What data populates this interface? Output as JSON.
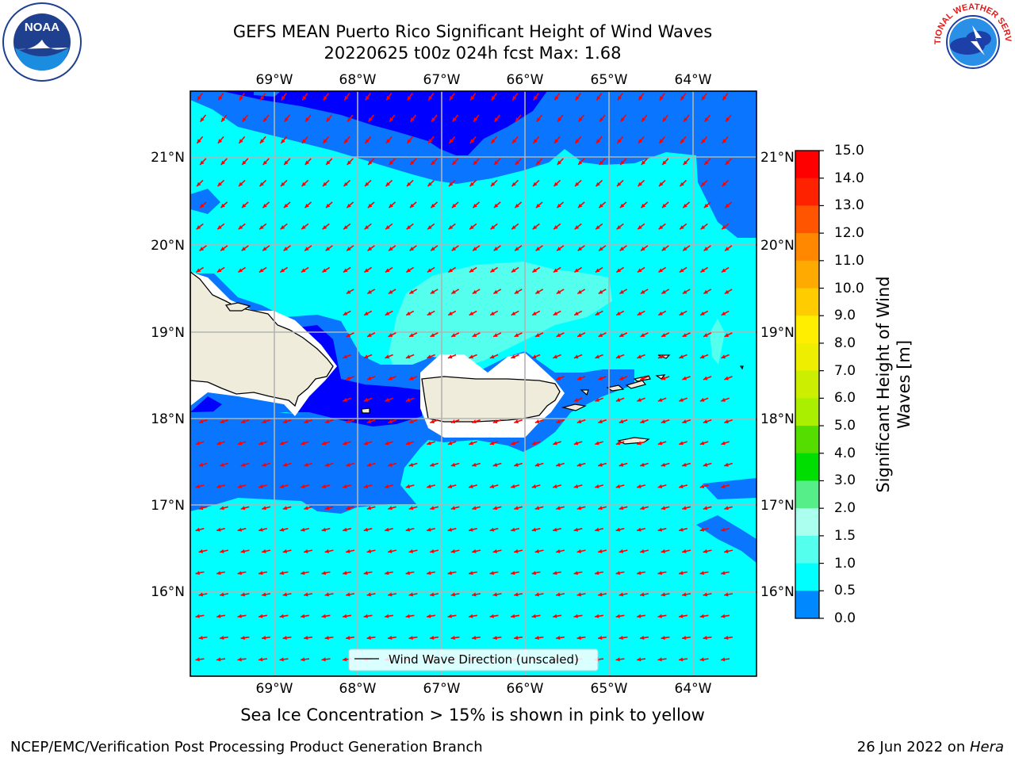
{
  "title": {
    "line1": "GEFS MEAN Puerto Rico Significant Height of Wind Waves",
    "line2": "20220625 t00z 024h fcst   Max: 1.68"
  },
  "logos": {
    "noaa_text": "NOAA",
    "nws_text": "NATIONAL WEATHER SERVICE"
  },
  "axes": {
    "lon_labels": [
      "69°W",
      "68°W",
      "67°W",
      "66°W",
      "65°W",
      "64°W"
    ],
    "lat_labels": [
      "21°N",
      "20°N",
      "19°N",
      "18°N",
      "17°N",
      "16°N"
    ]
  },
  "legend": {
    "label": "Wind Wave Direction (unscaled)"
  },
  "colorbar": {
    "title_line1": "Significant Height of Wind",
    "title_line2": "Waves [m]",
    "ticks": [
      "15.0",
      "14.0",
      "13.0",
      "12.0",
      "11.0",
      "10.0",
      "9.0",
      "8.0",
      "7.0",
      "6.0",
      "5.0",
      "4.0",
      "3.0",
      "2.0",
      "1.5",
      "1.0",
      "0.5",
      "0.0"
    ],
    "colors": [
      "#ff0000",
      "#ff2200",
      "#ff5500",
      "#ff8800",
      "#ffaa00",
      "#ffcc00",
      "#ffee00",
      "#eeee00",
      "#ccee00",
      "#aaee00",
      "#55dd00",
      "#00dd00",
      "#55ee88",
      "#aaffee",
      "#55ffee",
      "#00ffff",
      "#0088ff",
      "#0000ff"
    ]
  },
  "map_colors": {
    "land": "#efecdc",
    "dark_blue": "#0000ff",
    "mid_blue": "#0a76ff",
    "cyan": "#00ffff",
    "pale_cyan": "#55ffee",
    "arrow": "#ff0000"
  },
  "footer": {
    "note": "Sea Ice Concentration > 15% is shown in pink to yellow",
    "credit_left": "NCEP/EMC/Verification Post Processing Product Generation Branch",
    "credit_date": "26 Jun 2022 on ",
    "credit_host": "Hera"
  }
}
